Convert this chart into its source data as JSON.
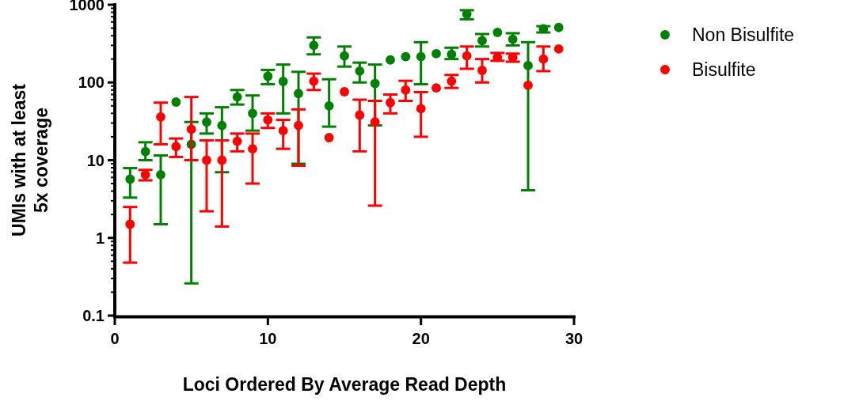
{
  "chart_data": {
    "type": "scatter",
    "xlabel": "Loci Ordered By Average Read Depth",
    "ylabel": "UMIs with at least 5x coverage",
    "log": "y",
    "marker": "circle",
    "legend": "top right",
    "grid": false,
    "xlim": [
      0,
      30
    ],
    "xticks": [
      0,
      10,
      20,
      30
    ],
    "ylim": [
      0.1,
      1000
    ],
    "yticks": [
      0.1,
      {
        "value": 0.2,
        "label": null
      },
      {
        "value": 0.3,
        "label": null
      },
      {
        "value": 0.4,
        "label": null
      },
      {
        "value": 0.5,
        "label": null
      },
      {
        "value": 0.6,
        "label": null
      },
      {
        "value": 0.7,
        "label": null
      },
      {
        "value": 0.8,
        "label": null
      },
      {
        "value": 0.9,
        "label": null
      },
      1,
      {
        "value": 2,
        "label": null
      },
      {
        "value": 3,
        "label": null
      },
      {
        "value": 4,
        "label": null
      },
      {
        "value": 5,
        "label": null
      },
      {
        "value": 6,
        "label": null
      },
      {
        "value": 7,
        "label": null
      },
      {
        "value": 8,
        "label": null
      },
      {
        "value": 9,
        "label": null
      },
      10,
      {
        "value": 20,
        "label": null
      },
      {
        "value": 30,
        "label": null
      },
      {
        "value": 40,
        "label": null
      },
      {
        "value": 50,
        "label": null
      },
      {
        "value": 60,
        "label": null
      },
      {
        "value": 70,
        "label": null
      },
      {
        "value": 80,
        "label": null
      },
      {
        "value": 90,
        "label": null
      },
      100,
      {
        "value": 200,
        "label": null
      },
      {
        "value": 300,
        "label": null
      },
      {
        "value": 400,
        "label": null
      },
      {
        "value": 500,
        "label": null
      },
      {
        "value": 600,
        "label": null
      },
      {
        "value": 700,
        "label": null
      },
      {
        "value": 800,
        "label": null
      },
      {
        "value": 900,
        "label": null
      },
      1000
    ],
    "x": [
      1,
      2,
      3,
      4,
      5,
      6,
      7,
      8,
      9,
      10,
      11,
      12,
      13,
      14,
      15,
      16,
      17,
      18,
      19,
      20,
      21,
      22,
      23,
      24,
      25,
      26,
      27,
      28,
      29
    ],
    "series": [
      {
        "name": "Non Bisulfite",
        "color": "#008000",
        "values": [
          5.7,
          12.9,
          6.5,
          56,
          16,
          31,
          28,
          65,
          40,
          120,
          103,
          72,
          300,
          50,
          220,
          140,
          97,
          195,
          215,
          215,
          235,
          230,
          760,
          345,
          440,
          360,
          165,
          490,
          510
        ],
        "errors": [
          [
            3.3,
            7.9
          ],
          [
            10,
            17
          ],
          [
            1.5,
            11.5
          ],
          null,
          [
            0.26,
            31
          ],
          [
            22,
            40
          ],
          [
            7,
            48
          ],
          [
            52,
            80
          ],
          [
            24,
            68
          ],
          [
            95,
            145
          ],
          [
            40,
            170
          ],
          [
            9,
            137
          ],
          [
            230,
            380
          ],
          [
            27,
            110
          ],
          [
            160,
            290
          ],
          [
            100,
            180
          ],
          [
            28,
            170
          ],
          null,
          null,
          [
            95,
            330
          ],
          null,
          [
            200,
            280
          ],
          [
            650,
            850
          ],
          [
            290,
            420
          ],
          null,
          [
            300,
            430
          ],
          [
            4.1,
            330
          ],
          [
            440,
            530
          ],
          null
        ]
      },
      {
        "name": "Bisulfite",
        "color": "#ff0000",
        "values": [
          1.5,
          6.5,
          36,
          15,
          25,
          10,
          10,
          17.5,
          14,
          33,
          24,
          28,
          104,
          19.5,
          76,
          38,
          31,
          55,
          80,
          46,
          85,
          104,
          220,
          143,
          210,
          210,
          92,
          200,
          270
        ],
        "errors": [
          [
            0.48,
            2.5
          ],
          [
            5.5,
            7.5
          ],
          [
            16,
            55
          ],
          [
            11,
            19
          ],
          [
            10,
            65
          ],
          [
            2.2,
            18
          ],
          [
            1.4,
            18
          ],
          [
            13,
            22
          ],
          [
            5,
            22
          ],
          [
            26,
            40
          ],
          [
            14,
            33
          ],
          [
            8.5,
            45
          ],
          [
            80,
            130
          ],
          null,
          null,
          [
            13,
            60
          ],
          [
            2.6,
            58
          ],
          [
            40,
            70
          ],
          [
            58,
            105
          ],
          [
            20,
            75
          ],
          null,
          [
            85,
            125
          ],
          [
            150,
            290
          ],
          [
            100,
            200
          ],
          [
            190,
            240
          ],
          [
            185,
            235
          ],
          null,
          [
            140,
            290
          ],
          null
        ]
      }
    ]
  }
}
